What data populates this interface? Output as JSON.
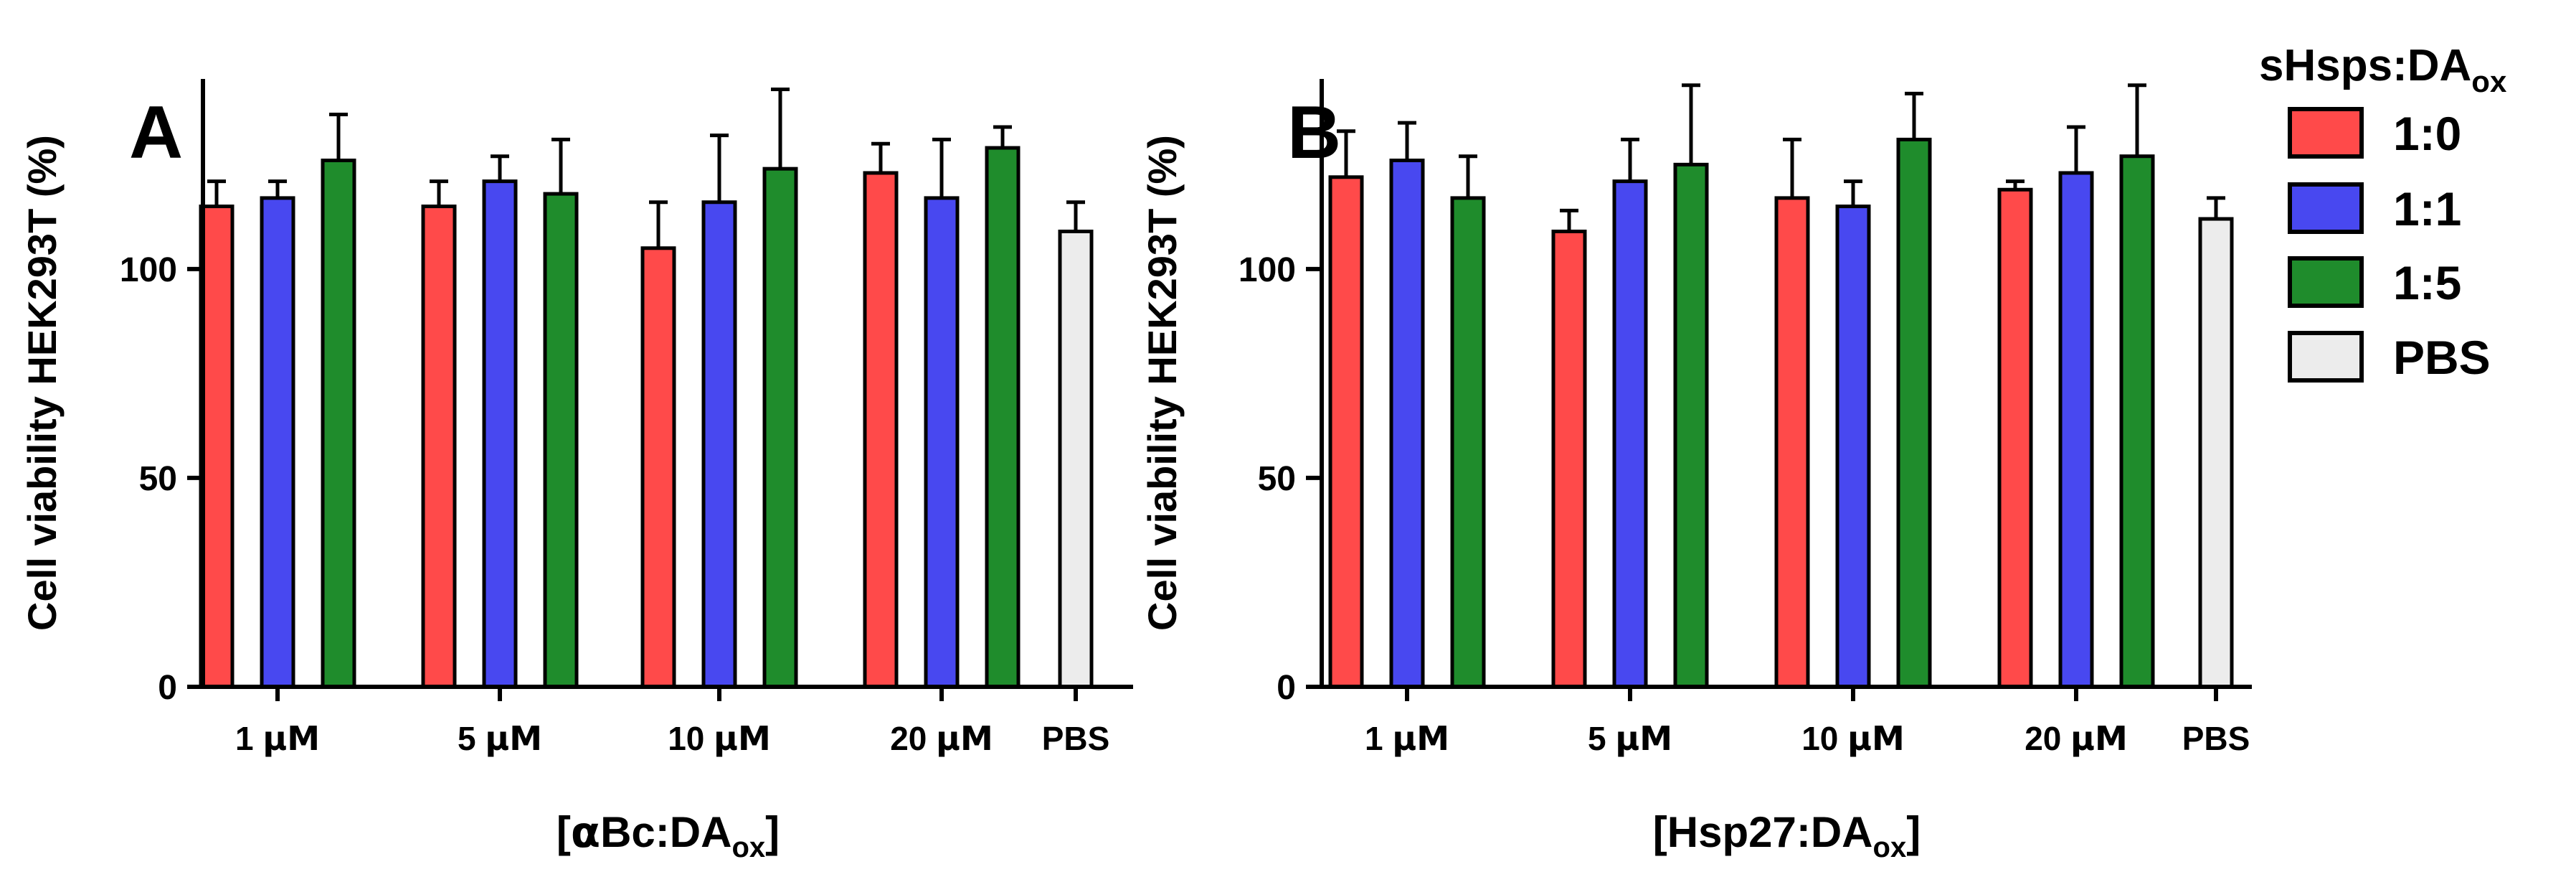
{
  "colors": {
    "1:0": "#ff4a4a",
    "1:1": "#4848f0",
    "1:5": "#1f8c2c",
    "PBS": "#ececec",
    "axis": "#000000"
  },
  "legend": {
    "title_main": "sHsps:DA",
    "title_sub": "ox",
    "entries": [
      {
        "key": "1:0",
        "label": "1:0"
      },
      {
        "key": "1:1",
        "label": "1:1"
      },
      {
        "key": "1:5",
        "label": "1:5"
      },
      {
        "key": "PBS",
        "label": "PBS"
      }
    ]
  },
  "chart_data": [
    {
      "type": "bar",
      "panel": "A",
      "ylabel": "Cell viability HEK293T (%)",
      "xlabel_pre": "[",
      "xlabel_greek": "α",
      "xlabel_main": "Bc:DA",
      "xlabel_sub": "ox",
      "xlabel_post": "]",
      "ylim": [
        0,
        150
      ],
      "yticks": [
        0,
        50,
        100
      ],
      "groups": [
        {
          "num": "1",
          "unit": "μM",
          "bars": [
            {
              "series": "1:0",
              "value": 115,
              "err": 6
            },
            {
              "series": "1:1",
              "value": 117,
              "err": 4
            },
            {
              "series": "1:5",
              "value": 126,
              "err": 11
            }
          ]
        },
        {
          "num": "5",
          "unit": "μM",
          "bars": [
            {
              "series": "1:0",
              "value": 115,
              "err": 6
            },
            {
              "series": "1:1",
              "value": 121,
              "err": 6
            },
            {
              "series": "1:5",
              "value": 118,
              "err": 13
            }
          ]
        },
        {
          "num": "10",
          "unit": "μM",
          "bars": [
            {
              "series": "1:0",
              "value": 105,
              "err": 11
            },
            {
              "series": "1:1",
              "value": 116,
              "err": 16
            },
            {
              "series": "1:5",
              "value": 124,
              "err": 19
            }
          ]
        },
        {
          "num": "20",
          "unit": "μM",
          "bars": [
            {
              "series": "1:0",
              "value": 123,
              "err": 7
            },
            {
              "series": "1:1",
              "value": 117,
              "err": 14
            },
            {
              "series": "1:5",
              "value": 129,
              "err": 5
            }
          ]
        },
        {
          "num": "PBS",
          "unit": "",
          "bars": [
            {
              "series": "PBS",
              "value": 109,
              "err": 7
            }
          ]
        }
      ]
    },
    {
      "type": "bar",
      "panel": "B",
      "ylabel": "Cell viability HEK293T (%)",
      "xlabel_pre": "[",
      "xlabel_greek": "",
      "xlabel_main": "Hsp27:DA",
      "xlabel_sub": "ox",
      "xlabel_post": "]",
      "ylim": [
        0,
        150
      ],
      "yticks": [
        0,
        50,
        100
      ],
      "groups": [
        {
          "num": "1",
          "unit": "μM",
          "bars": [
            {
              "series": "1:0",
              "value": 122,
              "err": 11
            },
            {
              "series": "1:1",
              "value": 126,
              "err": 9
            },
            {
              "series": "1:5",
              "value": 117,
              "err": 10
            }
          ]
        },
        {
          "num": "5",
          "unit": "μM",
          "bars": [
            {
              "series": "1:0",
              "value": 109,
              "err": 5
            },
            {
              "series": "1:1",
              "value": 121,
              "err": 10
            },
            {
              "series": "1:5",
              "value": 125,
              "err": 19
            }
          ]
        },
        {
          "num": "10",
          "unit": "μM",
          "bars": [
            {
              "series": "1:0",
              "value": 117,
              "err": 14
            },
            {
              "series": "1:1",
              "value": 115,
              "err": 6
            },
            {
              "series": "1:5",
              "value": 131,
              "err": 11
            }
          ]
        },
        {
          "num": "20",
          "unit": "μM",
          "bars": [
            {
              "series": "1:0",
              "value": 119,
              "err": 2
            },
            {
              "series": "1:1",
              "value": 123,
              "err": 11
            },
            {
              "series": "1:5",
              "value": 127,
              "err": 17
            }
          ]
        },
        {
          "num": "PBS",
          "unit": "",
          "bars": [
            {
              "series": "PBS",
              "value": 112,
              "err": 5
            }
          ]
        }
      ]
    }
  ]
}
